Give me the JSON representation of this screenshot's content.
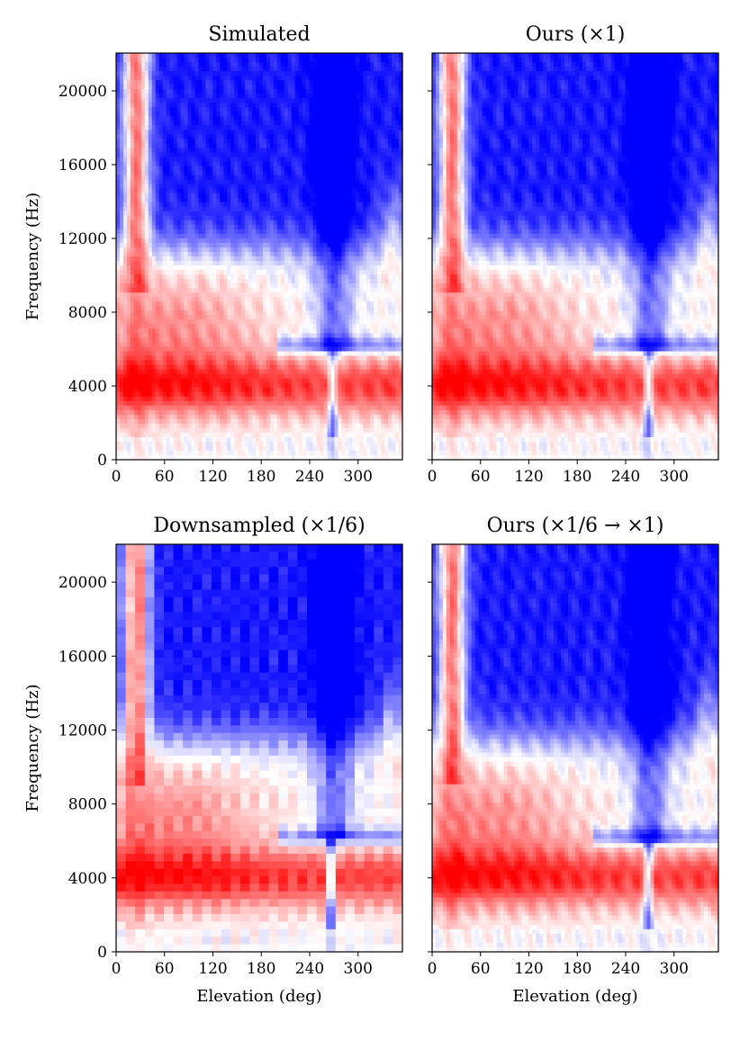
{
  "colors": {
    "positive": "#ff0000",
    "negative": "#0000ff",
    "neutral": "#ffffff"
  },
  "chart_data": [
    {
      "type": "heatmap",
      "title": "Simulated",
      "xlabel": "",
      "ylabel": "Frequency (Hz)",
      "x_ticks": [
        0,
        60,
        120,
        180,
        240,
        300
      ],
      "y_ticks": [
        0,
        4000,
        8000,
        12000,
        16000,
        20000
      ],
      "xlim": [
        0,
        355
      ],
      "ylim": [
        0,
        22050
      ],
      "colormap": "bwr",
      "resolution": "full"
    },
    {
      "type": "heatmap",
      "title": "Ours (×1)",
      "xlabel": "",
      "ylabel": "",
      "x_ticks": [
        0,
        60,
        120,
        180,
        240,
        300
      ],
      "y_ticks": [
        0,
        4000,
        8000,
        12000,
        16000,
        20000
      ],
      "xlim": [
        0,
        355
      ],
      "ylim": [
        0,
        22050
      ],
      "colormap": "bwr",
      "resolution": "full"
    },
    {
      "type": "heatmap",
      "title": "Downsampled (×1/6)",
      "xlabel": "Elevation (deg)",
      "ylabel": "Frequency (Hz)",
      "x_ticks": [
        0,
        60,
        120,
        180,
        240,
        300
      ],
      "y_ticks": [
        0,
        4000,
        8000,
        12000,
        16000,
        20000
      ],
      "xlim": [
        0,
        355
      ],
      "ylim": [
        0,
        22050
      ],
      "colormap": "bwr",
      "resolution": "coarse"
    },
    {
      "type": "heatmap",
      "title": "Ours (×1/6 → ×1)",
      "xlabel": "Elevation (deg)",
      "ylabel": "",
      "x_ticks": [
        0,
        60,
        120,
        180,
        240,
        300
      ],
      "y_ticks": [
        0,
        4000,
        8000,
        12000,
        16000,
        20000
      ],
      "xlim": [
        0,
        355
      ],
      "ylim": [
        0,
        22050
      ],
      "colormap": "bwr",
      "resolution": "full"
    }
  ]
}
